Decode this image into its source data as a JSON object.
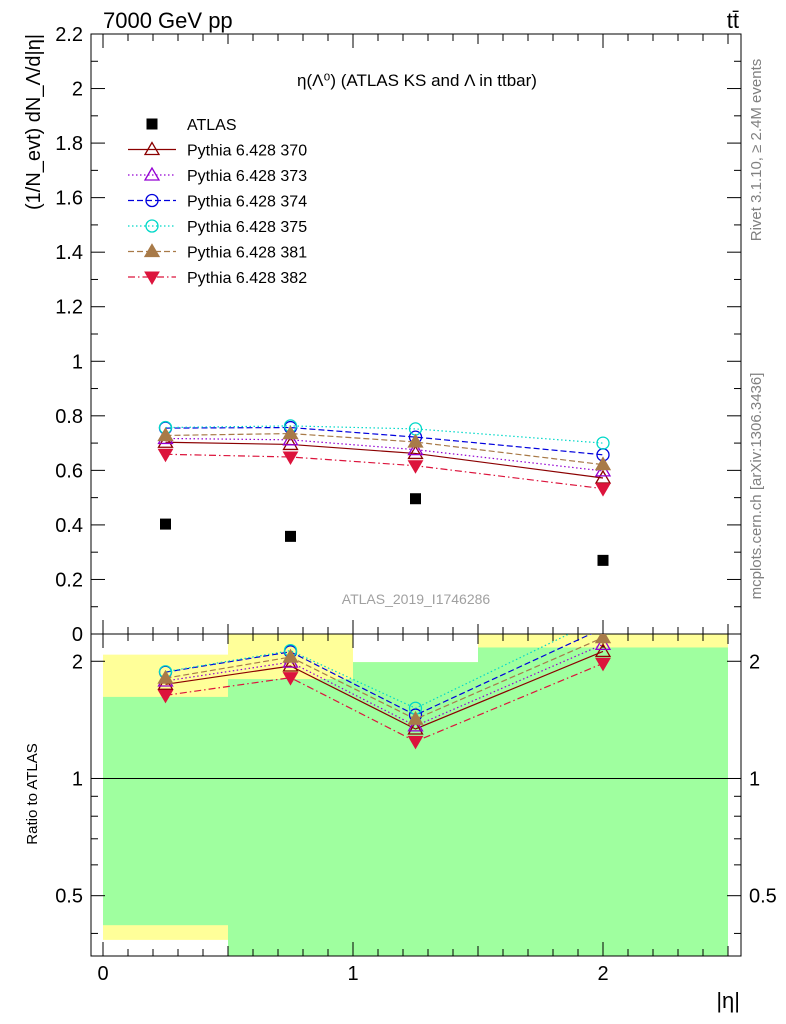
{
  "header": {
    "left": "7000 GeV pp",
    "right": "tt̄"
  },
  "side_labels": {
    "rivet": "Rivet 3.1.10, ≥ 2.4M events",
    "mcplots": "mcplots.cern.ch [arXiv:1306.3436]"
  },
  "chart_data": {
    "type": "line",
    "title": "η(Λ⁰) (ATLAS KS and Λ in ttbar)",
    "analysis_label": "ATLAS_2019_I1746286",
    "xlabel": "|η|",
    "ylabel": "(1/N_evt) dN_Λ/d|η|",
    "ratio_ylabel": "Ratio to ATLAS",
    "x": [
      0.25,
      0.75,
      1.25,
      2.0
    ],
    "xlim": [
      0,
      2.5
    ],
    "ylim": [
      0,
      2.2
    ],
    "ratio_ylim": [
      0.35,
      2.35
    ],
    "ratio_log": true,
    "x_ticks": [
      "0",
      "1",
      "2"
    ],
    "y_ticks": [
      "0",
      "0.2",
      "0.4",
      "0.6",
      "0.8",
      "1",
      "1.2",
      "1.4",
      "1.6",
      "1.8",
      "2",
      "2.2"
    ],
    "ratio_ticks": [
      "0.5",
      "1",
      "2"
    ],
    "data": {
      "name": "ATLAS",
      "color": "#000000",
      "values": [
        0.403,
        0.358,
        0.496,
        0.27
      ]
    },
    "series": [
      {
        "name": "Pythia 6.428 370",
        "color": "#8b0000",
        "dash": "solid",
        "marker": "triangle-open",
        "values": [
          0.703,
          0.695,
          0.662,
          0.572
        ],
        "ratio": [
          1.745,
          1.945,
          1.34,
          2.12
        ]
      },
      {
        "name": "Pythia 6.428 373",
        "color": "#9400d3",
        "dash": "dotted",
        "marker": "triangle-open",
        "values": [
          0.717,
          0.712,
          0.676,
          0.598
        ],
        "ratio": [
          1.78,
          1.99,
          1.365,
          2.21
        ]
      },
      {
        "name": "Pythia 6.428 374",
        "color": "#0000dd",
        "dash": "dashed",
        "marker": "circle-open",
        "values": [
          0.755,
          0.757,
          0.722,
          0.657
        ],
        "ratio": [
          1.875,
          2.115,
          1.455,
          2.43
        ]
      },
      {
        "name": "Pythia 6.428 375",
        "color": "#00d8c8",
        "dash": "dotted",
        "marker": "circle-open",
        "values": [
          0.757,
          0.763,
          0.752,
          0.7
        ],
        "ratio": [
          1.88,
          2.13,
          1.515,
          2.59
        ]
      },
      {
        "name": "Pythia 6.428 381",
        "color": "#a87a48",
        "dash": "dashed",
        "marker": "triangle-filled",
        "values": [
          0.728,
          0.735,
          0.704,
          0.621
        ],
        "ratio": [
          1.81,
          2.05,
          1.42,
          2.3
        ]
      },
      {
        "name": "Pythia 6.428 382",
        "color": "#dc143c",
        "dash": "dashdot",
        "marker": "triangle-down-filled",
        "values": [
          0.659,
          0.649,
          0.617,
          0.533
        ],
        "ratio": [
          1.635,
          1.815,
          1.245,
          1.975
        ]
      }
    ],
    "uncertainty_bands": {
      "x_bins": [
        [
          0,
          0.5
        ],
        [
          0.5,
          1.0
        ],
        [
          1.0,
          1.5
        ],
        [
          1.5,
          2.5
        ]
      ],
      "stat_syst": [
        [
          0.385,
          2.08
        ],
        [
          0.33,
          2.5
        ],
        [
          0.33,
          1.99
        ],
        [
          0.33,
          2.5
        ]
      ],
      "stat": [
        [
          0.42,
          1.62
        ],
        [
          0.33,
          1.8
        ],
        [
          0.33,
          1.99
        ],
        [
          0.33,
          2.17
        ]
      ],
      "outer_color": "#ffff99",
      "inner_color": "#9fff9f"
    }
  }
}
